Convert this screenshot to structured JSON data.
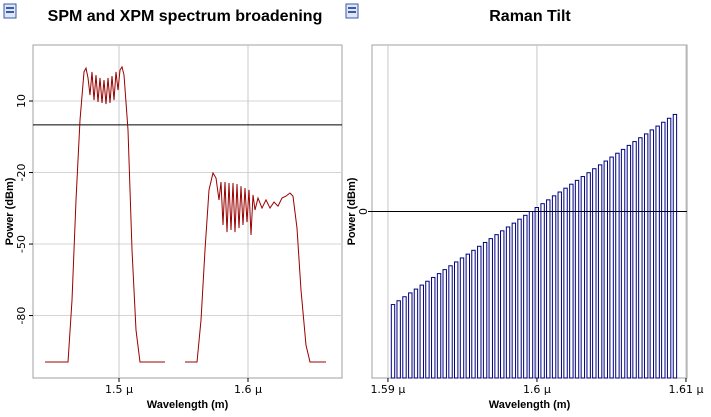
{
  "chart_data": [
    {
      "type": "line",
      "title": "SPM and XPM spectrum broadening",
      "xlabel": "Wavelength (m)",
      "ylabel": "Power (dBm)",
      "color": "#990000",
      "grid": true,
      "xlim": [
        1.43333e-06,
        1.67287e-06
      ],
      "ylim": [
        -106.2,
        33.5
      ],
      "xticks": [
        {
          "value": 1.5e-06,
          "label": "1.5 μ"
        },
        {
          "value": 1.6e-06,
          "label": "1.6 μ"
        }
      ],
      "yticks": [
        10,
        -20,
        -50,
        -80
      ],
      "x": [
        1.44264e-06,
        1.46047e-06,
        1.46357e-06,
        1.46667e-06,
        1.46977e-06,
        1.47287e-06,
        1.47442e-06,
        1.47597e-06,
        1.47752e-06,
        1.47907e-06,
        1.48062e-06,
        1.48217e-06,
        1.48372e-06,
        1.48527e-06,
        1.48682e-06,
        1.48837e-06,
        1.48992e-06,
        1.49147e-06,
        1.49302e-06,
        1.49457e-06,
        1.49612e-06,
        1.49767e-06,
        1.49922e-06,
        1.50078e-06,
        1.50233e-06,
        1.50388e-06,
        1.50698e-06,
        1.51008e-06,
        1.51318e-06,
        1.51628e-06,
        1.53566e-06,
        1.54341e-06,
        1.55116e-06,
        1.56047e-06,
        1.56357e-06,
        1.56667e-06,
        1.56977e-06,
        1.57287e-06,
        1.57519e-06,
        1.57752e-06,
        1.57907e-06,
        1.58062e-06,
        1.58217e-06,
        1.58372e-06,
        1.58527e-06,
        1.58682e-06,
        1.58837e-06,
        1.58992e-06,
        1.59147e-06,
        1.59302e-06,
        1.59457e-06,
        1.59612e-06,
        1.59767e-06,
        1.59922e-06,
        1.60078e-06,
        1.60233e-06,
        1.60388e-06,
        1.60543e-06,
        1.60775e-06,
        1.61085e-06,
        1.61395e-06,
        1.61705e-06,
        1.62016e-06,
        1.62326e-06,
        1.62636e-06,
        1.62946e-06,
        1.63256e-06,
        1.63488e-06,
        1.63798e-06,
        1.64109e-06,
        1.64496e-06,
        1.64806e-06,
        1.66047e-06
      ],
      "values": [
        -99.5,
        -99.5,
        -73.5,
        -31.5,
        2.0,
        22.2,
        23.8,
        19.7,
        12.5,
        22.2,
        10.4,
        20.9,
        9.6,
        19.7,
        9.2,
        18.8,
        8.7,
        19.7,
        9.2,
        20.5,
        10.4,
        22.2,
        14.6,
        23.0,
        24.3,
        20.9,
        -2.2,
        -52.5,
        -86.1,
        -99.5,
        -99.5,
        null,
        -99.5,
        -99.5,
        -81.9,
        -52.5,
        -27.3,
        -20.2,
        -22.3,
        -31.5,
        -24.0,
        -42.0,
        -24.0,
        -45.0,
        -24.4,
        -44.1,
        -24.4,
        -45.0,
        -24.8,
        -43.3,
        -25.7,
        -42.0,
        -26.5,
        -40.8,
        -27.3,
        -46.2,
        -29.4,
        -35.7,
        -30.7,
        -34.9,
        -31.5,
        -34.9,
        -32.4,
        -34.1,
        -30.7,
        -29.9,
        -28.6,
        -29.9,
        -43.3,
        -69.3,
        -92.4,
        -99.5,
        -99.5
      ]
    },
    {
      "type": "bar",
      "title": "Raman Tilt",
      "xlabel": "Wavelength (m)",
      "ylabel": "Power (dBm)",
      "color": "#000080",
      "grid": true,
      "xlim": [
        1.58893e-06,
        1.61007e-06
      ],
      "ylim": [
        -1,
        1
      ],
      "xticks": [
        {
          "value": 1.59e-06,
          "label": "1.59 μ"
        },
        {
          "value": 1.6e-06,
          "label": "1.6 μ"
        },
        {
          "value": 1.61e-06,
          "label": "1.61 μ"
        }
      ],
      "yticks": [
        0
      ],
      "x": [
        1.59034e-06,
        1.59072e-06,
        1.59111e-06,
        1.5915e-06,
        1.59188e-06,
        1.59227e-06,
        1.59265e-06,
        1.59304e-06,
        1.59343e-06,
        1.59381e-06,
        1.5942e-06,
        1.59458e-06,
        1.59497e-06,
        1.59536e-06,
        1.59574e-06,
        1.59613e-06,
        1.59652e-06,
        1.5969e-06,
        1.59729e-06,
        1.59767e-06,
        1.59806e-06,
        1.59845e-06,
        1.59883e-06,
        1.59922e-06,
        1.5996e-06,
        1.59999e-06,
        1.60038e-06,
        1.60076e-06,
        1.60115e-06,
        1.60153e-06,
        1.60192e-06,
        1.60231e-06,
        1.60269e-06,
        1.60308e-06,
        1.60347e-06,
        1.60385e-06,
        1.60424e-06,
        1.60462e-06,
        1.60501e-06,
        1.6054e-06,
        1.60578e-06,
        1.60617e-06,
        1.60655e-06,
        1.60694e-06,
        1.60733e-06,
        1.60771e-06,
        1.6081e-06,
        1.60848e-06,
        1.60887e-06,
        1.60926e-06
      ],
      "values": [
        -0.559,
        -0.536,
        -0.512,
        -0.489,
        -0.466,
        -0.442,
        -0.419,
        -0.396,
        -0.373,
        -0.349,
        -0.326,
        -0.303,
        -0.279,
        -0.256,
        -0.233,
        -0.209,
        -0.186,
        -0.163,
        -0.139,
        -0.116,
        -0.093,
        -0.07,
        -0.046,
        -0.023,
        0.0,
        0.024,
        0.047,
        0.07,
        0.094,
        0.117,
        0.14,
        0.164,
        0.187,
        0.21,
        0.233,
        0.257,
        0.28,
        0.303,
        0.327,
        0.35,
        0.373,
        0.397,
        0.42,
        0.443,
        0.466,
        0.49,
        0.513,
        0.536,
        0.56,
        0.583
      ]
    }
  ]
}
